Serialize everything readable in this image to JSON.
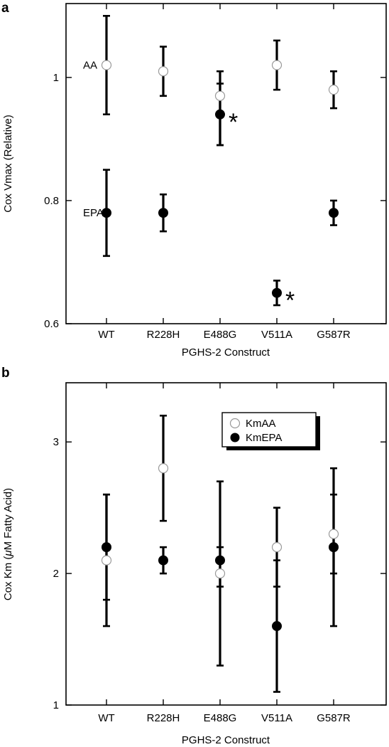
{
  "chart_data": [
    {
      "panel": "a",
      "type": "scatter",
      "categories": [
        "WT",
        "R228H",
        "E488G",
        "V511A",
        "G587R"
      ],
      "xlabel": "PGHS-2 Construct",
      "ylabel": "Cox Vmax (Relative)",
      "ylim": [
        0.6,
        1.12
      ],
      "yticks": [
        0.6,
        0.8,
        1
      ],
      "ytick_labels": [
        "0.6",
        "0.8",
        "1"
      ],
      "grid": false,
      "series": [
        {
          "name": "AA",
          "marker": "open-circle",
          "color": "#ffffff",
          "values": [
            1.02,
            1.01,
            0.97,
            1.02,
            0.98
          ],
          "err_low": [
            0.94,
            0.97,
            0.89,
            0.98,
            0.95
          ],
          "err_high": [
            1.1,
            1.05,
            1.01,
            1.06,
            1.01
          ]
        },
        {
          "name": "EPA",
          "marker": "filled-circle",
          "color": "#000000",
          "values": [
            0.78,
            0.78,
            0.94,
            0.65,
            0.78
          ],
          "err_low": [
            0.71,
            0.75,
            0.89,
            0.63,
            0.76
          ],
          "err_high": [
            0.85,
            0.81,
            0.99,
            0.67,
            0.8
          ]
        }
      ],
      "annotations": [
        {
          "text": "AA",
          "x": "WT",
          "y": 1.02
        },
        {
          "text": "EPA",
          "x": "WT",
          "y": 0.78
        },
        {
          "text": "*",
          "x": "E488G",
          "y": 0.94
        },
        {
          "text": "*",
          "x": "V511A",
          "y": 0.65
        }
      ]
    },
    {
      "panel": "b",
      "type": "scatter",
      "categories": [
        "WT",
        "R228H",
        "E488G",
        "V511A",
        "G587R"
      ],
      "xlabel": "PGHS-2 Construct",
      "ylabel_prefix": "Cox Km (",
      "ylabel_mu": "μ",
      "ylabel_suffix": "M Fatty Acid)",
      "ylim": [
        1,
        3.45
      ],
      "yticks": [
        1,
        2,
        3
      ],
      "ytick_labels": [
        "1",
        "2",
        "3"
      ],
      "grid": false,
      "legend_position": "top-right",
      "series": [
        {
          "name": "KmAA",
          "marker": "open-circle",
          "color": "#ffffff",
          "values": [
            2.1,
            2.8,
            2.0,
            2.2,
            2.3
          ],
          "err_low": [
            1.8,
            2.4,
            1.3,
            1.9,
            2.0
          ],
          "err_high": [
            2.6,
            3.2,
            2.7,
            2.5,
            2.6
          ]
        },
        {
          "name": "KmEPA",
          "marker": "filled-circle",
          "color": "#000000",
          "values": [
            2.2,
            2.1,
            2.1,
            1.6,
            2.2
          ],
          "err_low": [
            1.6,
            2.0,
            1.9,
            1.1,
            1.6
          ],
          "err_high": [
            2.6,
            2.2,
            2.2,
            2.1,
            2.8
          ]
        }
      ]
    }
  ]
}
